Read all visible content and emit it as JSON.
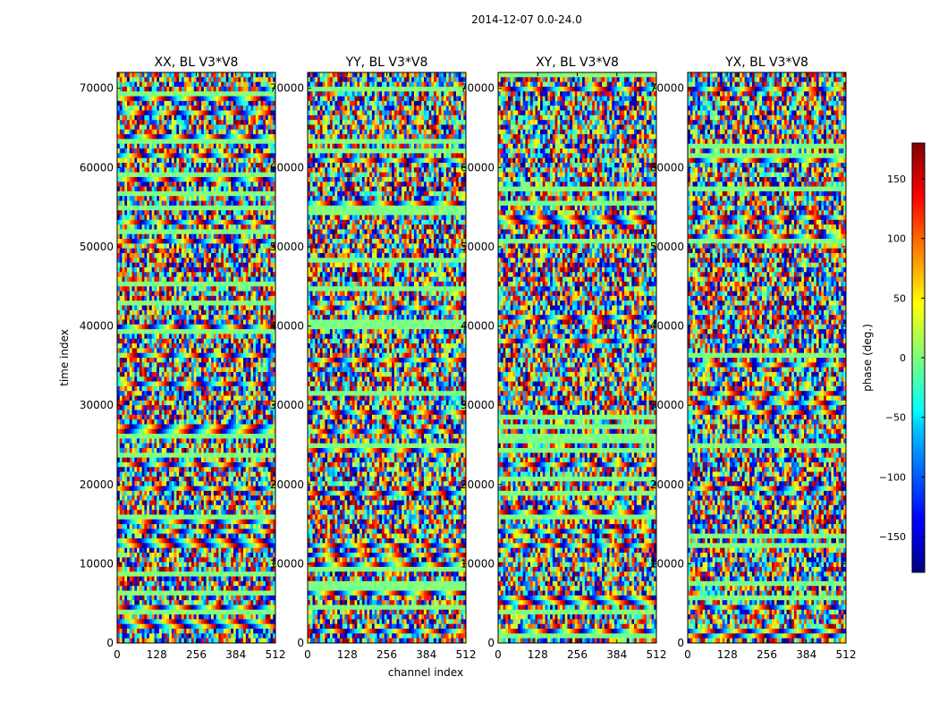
{
  "figure": {
    "suptitle": "2014-12-07 0.0-24.0"
  },
  "chart_data": {
    "type": "heatmap",
    "colormap": "jet",
    "xlabel": "channel index",
    "ylabel": "time index",
    "xlim": [
      0,
      512
    ],
    "ylim": [
      0,
      72000
    ],
    "xticks": [
      0,
      128,
      256,
      384,
      512
    ],
    "yticks": [
      0,
      10000,
      20000,
      30000,
      40000,
      50000,
      60000,
      70000
    ],
    "colorbar": {
      "label": "phase (deg.)",
      "range": [
        -180,
        180
      ],
      "ticks": [
        -150,
        -100,
        -50,
        0,
        50,
        100,
        150
      ]
    },
    "panels": [
      {
        "title": "XX, BL V3*V8"
      },
      {
        "title": "YY, BL V3*V8"
      },
      {
        "title": "XY, BL V3*V8"
      },
      {
        "title": "YX, BL V3*V8"
      }
    ]
  }
}
